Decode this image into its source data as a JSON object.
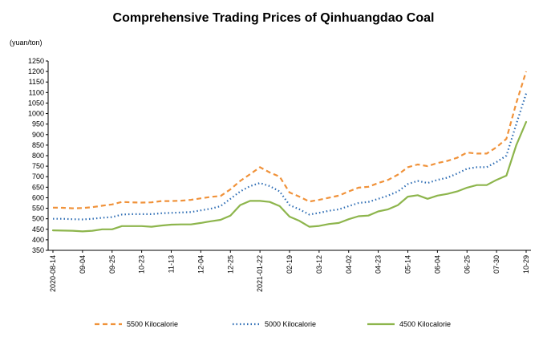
{
  "chart_data": {
    "type": "line",
    "title": "Comprehensive Trading Prices of Qinhuangdao Coal",
    "ylabel": "(yuan/ton)",
    "ylim": [
      350,
      1250
    ],
    "ytick_step": 50,
    "grid": false,
    "legend_position": "bottom",
    "x_ticks": [
      "2020-08-14",
      "09-04",
      "09-25",
      "10-23",
      "11-13",
      "12-04",
      "12-25",
      "2021-01-22",
      "02-19",
      "03-12",
      "04-02",
      "04-23",
      "05-14",
      "06-04",
      "06-25",
      "07-30",
      "10-29"
    ],
    "x_tick_index": [
      0,
      3,
      6,
      9,
      12,
      15,
      18,
      21,
      24,
      27,
      30,
      33,
      36,
      39,
      42,
      45,
      48
    ],
    "series": [
      {
        "name": "5500 Kilocalorie",
        "color": "#F0923A",
        "dash": "6,4",
        "width": 2.2,
        "values": [
          553,
          552,
          550,
          551,
          555,
          562,
          568,
          580,
          578,
          577,
          578,
          584,
          584,
          586,
          590,
          597,
          604,
          608,
          640,
          680,
          712,
          745,
          720,
          700,
          625,
          605,
          582,
          590,
          600,
          610,
          630,
          648,
          652,
          670,
          685,
          710,
          745,
          758,
          750,
          765,
          775,
          790,
          815,
          810,
          810,
          840,
          880,
          1050,
          1200
        ]
      },
      {
        "name": "5000 Kilocalorie",
        "color": "#2E6DB4",
        "dash": "1.5,3",
        "width": 2.2,
        "values": [
          500,
          500,
          498,
          497,
          500,
          505,
          508,
          520,
          522,
          522,
          522,
          526,
          528,
          530,
          532,
          540,
          548,
          560,
          595,
          630,
          655,
          670,
          655,
          630,
          565,
          545,
          520,
          528,
          538,
          545,
          560,
          575,
          580,
          595,
          610,
          630,
          665,
          680,
          670,
          685,
          695,
          715,
          738,
          745,
          745,
          770,
          800,
          950,
          1095
        ]
      },
      {
        "name": "4500 Kilocalorie",
        "color": "#8DB54C",
        "dash": "",
        "width": 2.2,
        "values": [
          445,
          444,
          443,
          440,
          443,
          450,
          450,
          465,
          465,
          465,
          462,
          468,
          472,
          473,
          473,
          480,
          488,
          495,
          515,
          565,
          585,
          585,
          580,
          560,
          510,
          490,
          462,
          466,
          475,
          480,
          498,
          512,
          515,
          535,
          545,
          565,
          605,
          612,
          595,
          610,
          618,
          630,
          648,
          660,
          660,
          685,
          705,
          850,
          960
        ]
      }
    ]
  }
}
